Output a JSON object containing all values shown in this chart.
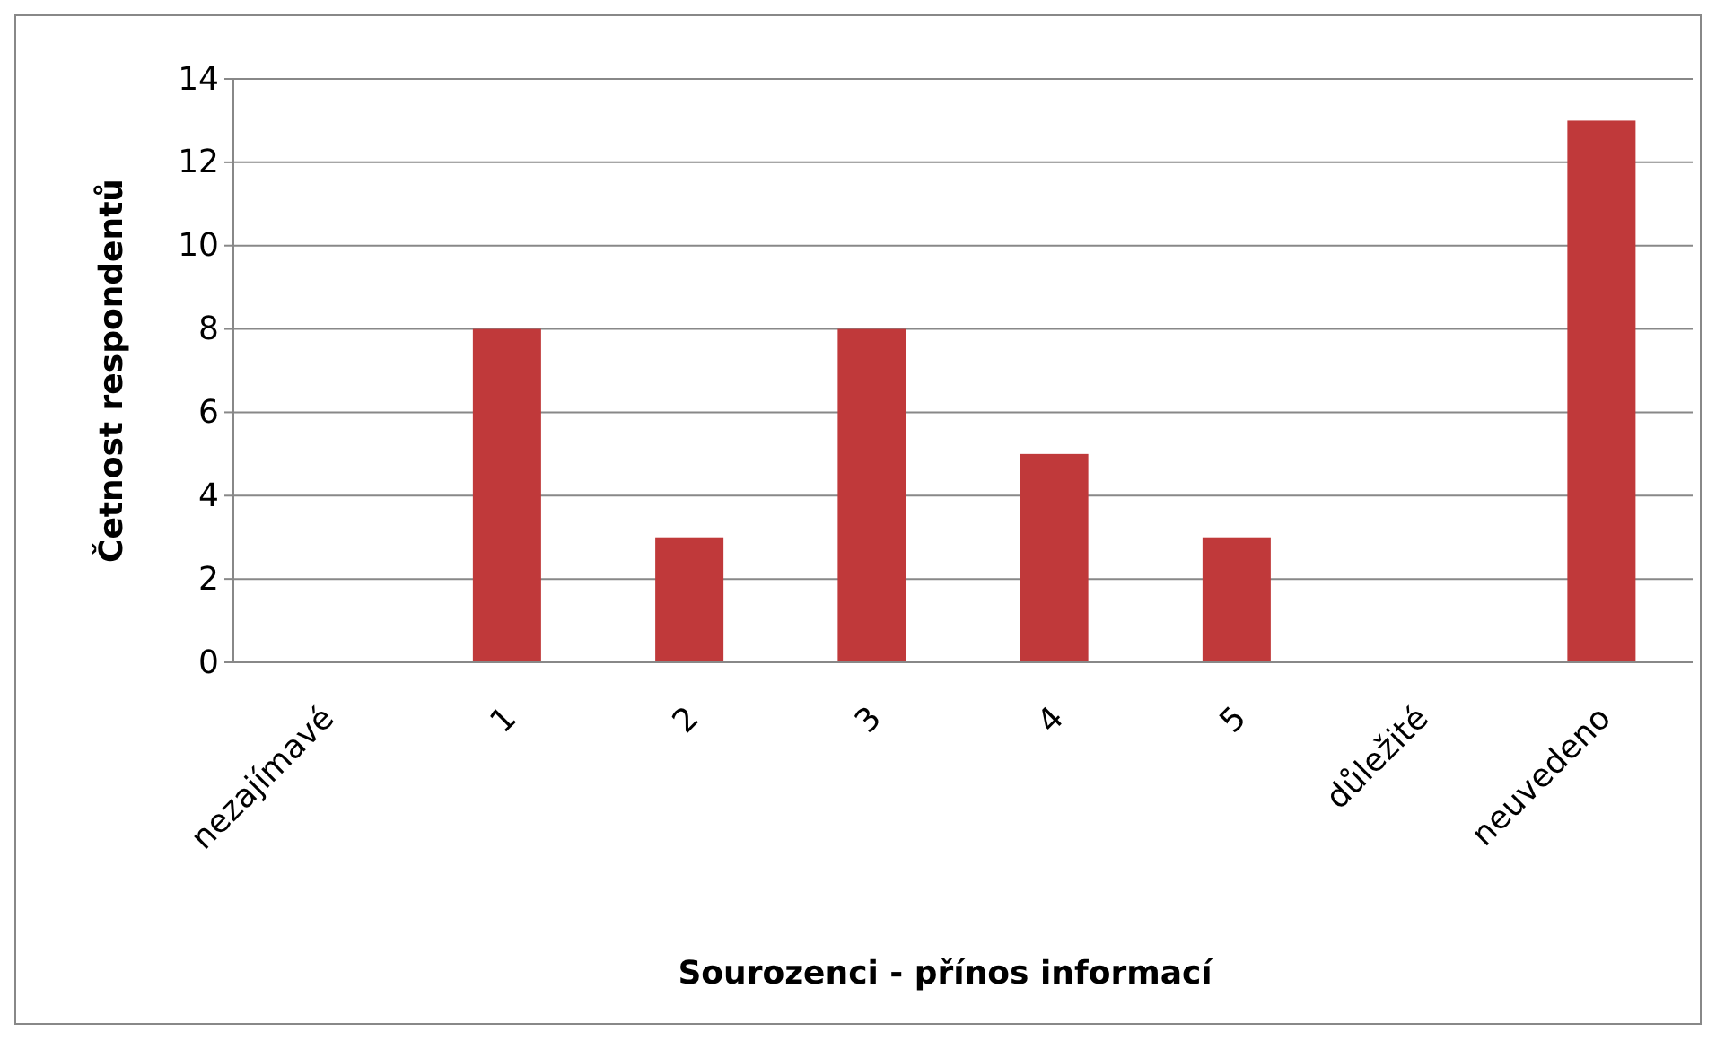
{
  "chart_data": {
    "type": "bar",
    "xlabel": "Sourozenci - přínos informací",
    "ylabel": "Četnost respondentů",
    "categories": [
      "nezajímavé",
      "1",
      "2",
      "3",
      "4",
      "5",
      "důležité",
      "neuvedeno"
    ],
    "values": [
      0,
      8,
      3,
      8,
      5,
      3,
      0,
      13
    ],
    "color": "#c0393a",
    "ylim": [
      0,
      14
    ],
    "yticks": [
      0,
      2,
      4,
      6,
      8,
      10,
      12,
      14
    ],
    "grid": "y"
  }
}
